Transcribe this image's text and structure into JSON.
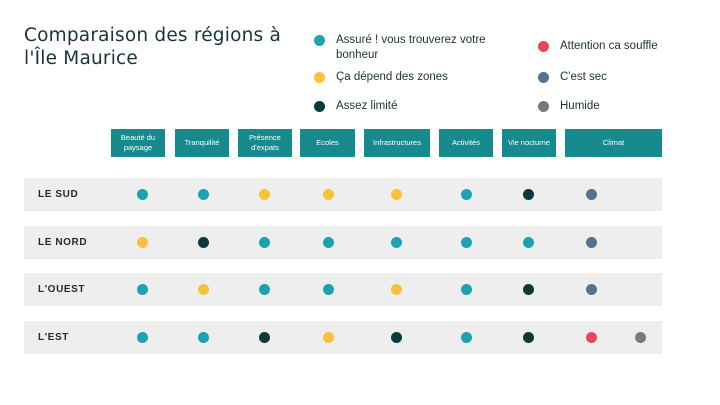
{
  "title": "Comparaison des régions à l'Île Maurice",
  "legend": [
    {
      "key": "assure",
      "label": "Assuré ! vous trouverez votre bonheur",
      "color": "#1aa3b0"
    },
    {
      "key": "depend",
      "label": "Ça dépend des zones",
      "color": "#f7c23b"
    },
    {
      "key": "limite",
      "label": "Assez limité",
      "color": "#0b3a3a"
    },
    {
      "key": "attention",
      "label": "Attention ca souffle",
      "color": "#e8475b"
    },
    {
      "key": "sec",
      "label": "C'est sec",
      "color": "#4f7498"
    },
    {
      "key": "humide",
      "label": "Humide",
      "color": "#7a7a7a"
    }
  ],
  "columns": [
    "Beauté du paysage",
    "Tranquilité",
    "Présence d'expats",
    "Ecoles",
    "Infrastructures",
    "Activités",
    "Vie nocturne",
    "Climat"
  ],
  "rows": [
    {
      "label": "LE SUD",
      "ratings": [
        "assure",
        "assure",
        "depend",
        "depend",
        "depend",
        "assure",
        "limite",
        "sec"
      ]
    },
    {
      "label": "LE NORD",
      "ratings": [
        "depend",
        "limite",
        "assure",
        "assure",
        "assure",
        "assure",
        "assure",
        "sec"
      ]
    },
    {
      "label": "L'OUEST",
      "ratings": [
        "assure",
        "depend",
        "assure",
        "assure",
        "depend",
        "assure",
        "limite",
        "sec"
      ]
    },
    {
      "label": "L'EST",
      "ratings": [
        "assure",
        "assure",
        "limite",
        "depend",
        "limite",
        "assure",
        "limite",
        "attention",
        "humide"
      ]
    }
  ]
}
